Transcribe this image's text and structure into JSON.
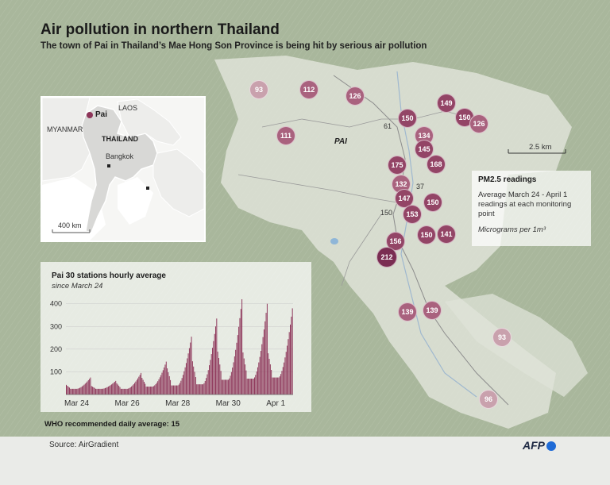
{
  "title": "Air pollution in northern Thailand",
  "subtitle": "The town of Pai in Thailand’s Mae Hong Son Province is being hit by serious air pollution",
  "inset": {
    "countries": [
      "MYANMAR",
      "LAOS",
      "THAILAND"
    ],
    "cities": [
      "Pai",
      "Bangkok"
    ],
    "scale": "400 km"
  },
  "map": {
    "town_label": "PAI",
    "scale": "2.5 km",
    "road_numbers": [
      "61",
      "37",
      "150"
    ],
    "stations": [
      {
        "value": 93,
        "level": "low"
      },
      {
        "value": 112,
        "level": "mid"
      },
      {
        "value": 126,
        "level": "mid"
      },
      {
        "value": 149,
        "level": "high"
      },
      {
        "value": 150,
        "level": "high"
      },
      {
        "value": 126,
        "level": "mid"
      },
      {
        "value": 150,
        "level": "high"
      },
      {
        "value": 111,
        "level": "mid"
      },
      {
        "value": 134,
        "level": "mid"
      },
      {
        "value": 145,
        "level": "high"
      },
      {
        "value": 175,
        "level": "high"
      },
      {
        "value": 168,
        "level": "high"
      },
      {
        "value": 132,
        "level": "mid"
      },
      {
        "value": 147,
        "level": "high"
      },
      {
        "value": 150,
        "level": "high"
      },
      {
        "value": 153,
        "level": "high"
      },
      {
        "value": 156,
        "level": "high"
      },
      {
        "value": 150,
        "level": "high"
      },
      {
        "value": 141,
        "level": "high"
      },
      {
        "value": 212,
        "level": "very-high"
      },
      {
        "value": 139,
        "level": "mid"
      },
      {
        "value": 139,
        "level": "mid"
      },
      {
        "value": 93,
        "level": "low"
      },
      {
        "value": 96,
        "level": "low"
      }
    ]
  },
  "legend": {
    "title": "PM2.5 readings",
    "description": "Average March 24 - April 1 readings at each monitoring point",
    "unit": "Micrograms per 1m³"
  },
  "colors": {
    "low": "#c9a1ad",
    "mid": "#a9627e",
    "high": "#934566",
    "very-high": "#7a2d52",
    "bar": "#8d3559",
    "afp_blue": "#1f6bd6"
  },
  "chart_data": {
    "type": "bar",
    "title": "Pai 30 stations hourly average",
    "subtitle": "since March 24",
    "xlabel": "",
    "ylabel": "",
    "ylim": [
      0,
      420
    ],
    "yticks": [
      100,
      200,
      300,
      400
    ],
    "x_tick_labels": [
      "Mar 24",
      "Mar 26",
      "Mar 28",
      "Mar 30",
      "Apr 1"
    ],
    "x_tick_positions": [
      0,
      48,
      96,
      144,
      192
    ],
    "interval": "hourly",
    "series": [
      {
        "name": "",
        "daily_cycles": [
          {
            "start_hour": 0,
            "low": 25,
            "peak": 75
          },
          {
            "start_hour": 24,
            "low": 25,
            "peak": 60
          },
          {
            "start_hour": 48,
            "low": 25,
            "peak": 95
          },
          {
            "start_hour": 72,
            "low": 35,
            "peak": 145
          },
          {
            "start_hour": 96,
            "low": 40,
            "peak": 255
          },
          {
            "start_hour": 120,
            "low": 45,
            "peak": 335
          },
          {
            "start_hour": 144,
            "low": 65,
            "peak": 420
          },
          {
            "start_hour": 168,
            "low": 70,
            "peak": 400
          },
          {
            "start_hour": 192,
            "low": 75,
            "peak": 380
          }
        ]
      }
    ]
  },
  "note": "WHO recommended daily average: 15",
  "source": "Source: AirGradient",
  "logo": "AFP"
}
